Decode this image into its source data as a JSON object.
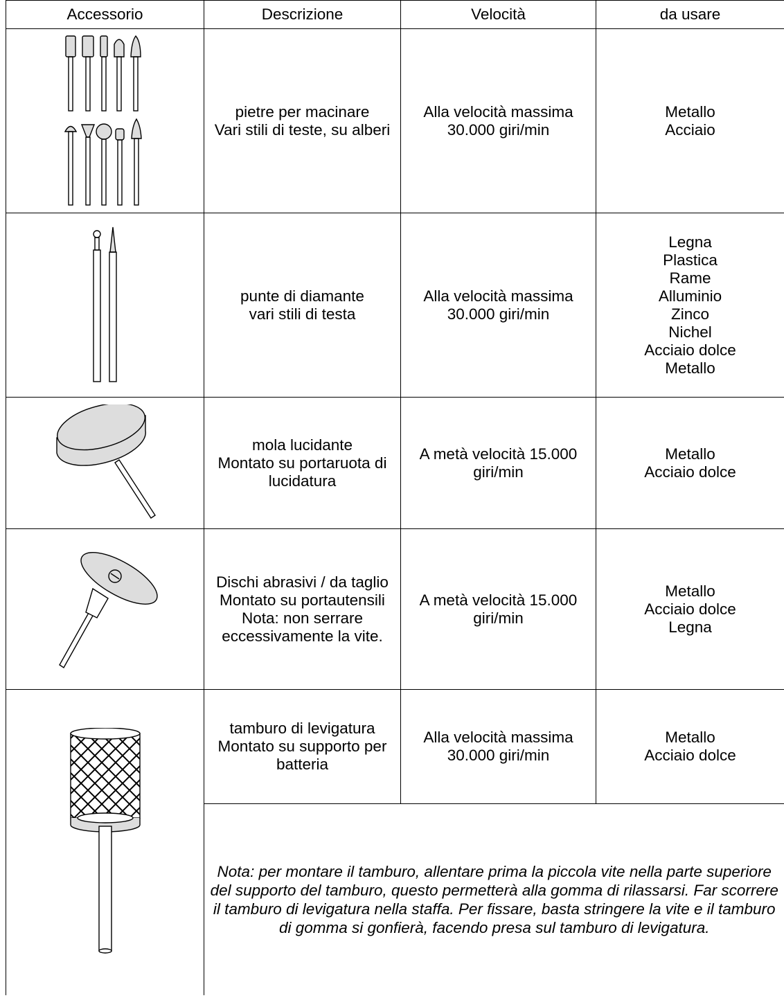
{
  "header": [
    "Accessorio",
    "Descrizione",
    "Velocità",
    "da usare"
  ],
  "rows": [
    {
      "description": [
        "pietre per macinare",
        "Vari stili di teste, su alberi"
      ],
      "speed": "Alla velocità massima 30.000 giri/min",
      "materials": [
        "Metallo",
        "Acciaio"
      ]
    },
    {
      "description": [
        "punte di diamante",
        "vari stili di testa"
      ],
      "speed": "Alla velocità massima 30.000 giri/min",
      "materials": [
        "Legna",
        "Plastica",
        "Rame",
        "Alluminio",
        "Zinco",
        "Nichel",
        "Acciaio dolce",
        "Metallo"
      ]
    },
    {
      "description": [
        "mola lucidante",
        "Montato su portaruota di lucidatura"
      ],
      "speed": "A metà velocità 15.000 giri/min",
      "materials": [
        "Metallo",
        "Acciaio dolce"
      ]
    },
    {
      "description": [
        "Dischi abrasivi / da taglio",
        "Montato su portautensili",
        "Nota: non serrare eccessivamente la vite."
      ],
      "speed": "A metà velocità 15.000 giri/min",
      "materials": [
        "Metallo",
        "Acciaio dolce",
        "Legna"
      ]
    },
    {
      "description": [
        "tamburo di levigatura",
        "Montato su supporto per batteria"
      ],
      "speed": "Alla velocità massima 30.000 giri/min",
      "materials": [
        "Metallo",
        "Acciaio dolce"
      ]
    }
  ],
  "note": "Nota: per montare il tamburo, allentare prima la piccola vite nella parte superiore del supporto del tamburo, questo permetterà alla gomma di rilassarsi. Far scorrere il tamburo di levigatura nella staffa. Per fissare, basta stringere la vite e il tamburo di gomma si gonfierà, facendo presa sul tamburo di levigatura."
}
